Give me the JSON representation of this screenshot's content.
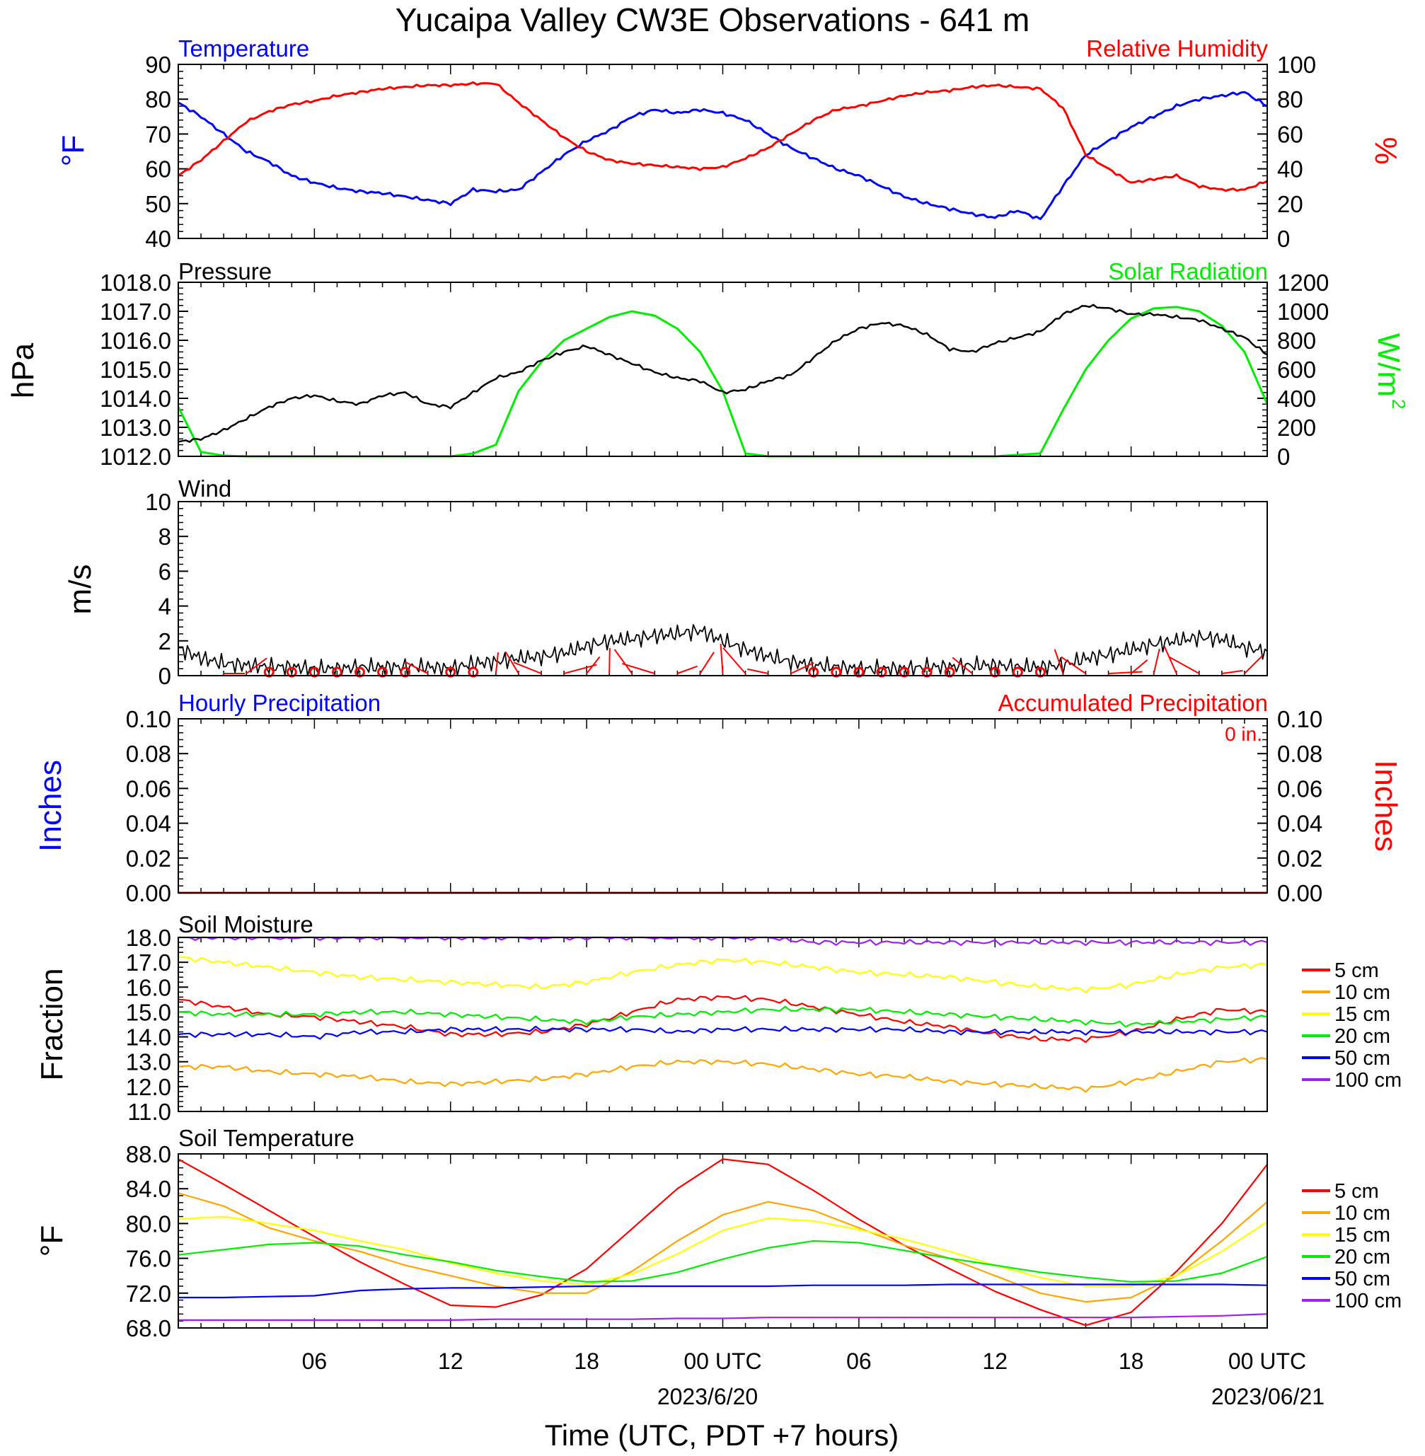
{
  "title": "Yucaipa Valley CW3E Observations - 641 m",
  "xlabel": "Time (UTC, PDT +7 hours)",
  "x_ticks": [
    "06",
    "12",
    "18",
    "00 UTC",
    "06",
    "12",
    "18",
    "00 UTC"
  ],
  "x_dates": [
    "2023/6/20",
    "2023/06/21"
  ],
  "colors": {
    "blue": "#0000ff",
    "red": "#ff0000",
    "green": "#00ee00",
    "black": "#000000",
    "orange": "#ffa500",
    "yellow": "#ffff00",
    "purple": "#a020f0"
  },
  "chart_data": [
    {
      "type": "line",
      "title": "Temperature",
      "title_right": "Relative Humidity",
      "ylabel": "°F",
      "ylabel_right": "%",
      "ylim": [
        40,
        90
      ],
      "ylim_right": [
        0,
        100
      ],
      "yticks": [
        "40",
        "50",
        "60",
        "70",
        "80",
        "90"
      ],
      "yticks_right": [
        "0",
        "20",
        "40",
        "60",
        "80",
        "100"
      ],
      "x_hours": [
        0,
        1,
        2,
        3,
        4,
        5,
        6,
        7,
        8,
        9,
        10,
        11,
        12,
        13,
        14,
        15,
        16,
        17,
        18,
        19,
        20,
        21,
        22,
        23,
        24,
        25,
        26,
        27,
        28,
        29,
        30,
        31,
        32,
        33,
        34,
        35,
        36,
        37,
        38,
        39,
        40,
        41,
        42,
        43,
        44,
        45,
        46,
        47,
        48
      ],
      "series": [
        {
          "name": "Temperature",
          "axis": "left",
          "color": "#0000ff",
          "values": [
            79,
            75,
            70,
            65,
            62,
            58,
            56,
            54.5,
            53.5,
            53,
            52,
            51,
            50,
            54,
            53.5,
            54,
            59,
            64,
            68,
            71,
            75,
            77,
            76,
            77,
            76,
            74,
            70,
            66,
            63,
            60,
            58,
            55,
            52,
            50,
            48.5,
            47,
            46,
            48,
            45.5,
            55,
            64,
            68,
            72,
            75,
            78,
            80,
            81,
            82,
            78
          ]
        },
        {
          "name": "Relative Humidity",
          "axis": "right",
          "color": "#ff0000",
          "values": [
            36,
            45,
            56,
            67,
            73,
            77,
            79,
            82,
            84,
            86,
            87,
            88,
            88,
            89,
            89,
            78,
            68,
            58,
            50,
            45,
            43,
            42,
            41,
            40,
            41,
            46,
            52,
            60,
            68,
            74,
            76,
            79,
            82,
            84,
            85,
            87,
            88,
            87,
            86,
            75,
            48,
            40,
            32,
            34,
            36,
            30,
            28,
            28,
            33
          ]
        }
      ]
    },
    {
      "type": "line",
      "title": "Pressure",
      "title_right": "Solar Radiation",
      "ylabel": "hPa",
      "ylabel_right": "W/m",
      "ylabel_right_sup": "2",
      "ylim": [
        1012,
        1018
      ],
      "ylim_right": [
        0,
        1200
      ],
      "yticks": [
        "1012.0",
        "1013.0",
        "1014.0",
        "1015.0",
        "1016.0",
        "1017.0",
        "1018.0"
      ],
      "yticks_right": [
        "0",
        "200",
        "400",
        "600",
        "800",
        "1000",
        "1200"
      ],
      "x_hours": [
        0,
        1,
        2,
        3,
        4,
        5,
        6,
        7,
        8,
        9,
        10,
        11,
        12,
        13,
        14,
        15,
        16,
        17,
        18,
        19,
        20,
        21,
        22,
        23,
        24,
        25,
        26,
        27,
        28,
        29,
        30,
        31,
        32,
        33,
        34,
        35,
        36,
        37,
        38,
        39,
        40,
        41,
        42,
        43,
        44,
        45,
        46,
        47,
        48
      ],
      "series": [
        {
          "name": "Pressure",
          "axis": "left",
          "color": "#000000",
          "values": [
            1012.5,
            1012.6,
            1012.9,
            1013.3,
            1013.7,
            1014.0,
            1014.1,
            1013.9,
            1013.8,
            1014.1,
            1014.2,
            1013.8,
            1013.7,
            1014.2,
            1014.7,
            1014.9,
            1015.3,
            1015.6,
            1015.8,
            1015.5,
            1015.2,
            1014.9,
            1014.7,
            1014.6,
            1014.2,
            1014.3,
            1014.6,
            1014.8,
            1015.4,
            1016.0,
            1016.4,
            1016.6,
            1016.5,
            1016.2,
            1015.7,
            1015.6,
            1015.9,
            1016.1,
            1016.3,
            1016.9,
            1017.2,
            1017.1,
            1016.9,
            1016.9,
            1016.8,
            1016.7,
            1016.4,
            1016.1,
            1015.5
          ]
        },
        {
          "name": "Solar Radiation",
          "axis": "right",
          "color": "#00ee00",
          "values": [
            340,
            30,
            5,
            0,
            0,
            0,
            0,
            0,
            0,
            0,
            0,
            0,
            0,
            20,
            80,
            450,
            650,
            800,
            880,
            960,
            1000,
            970,
            880,
            720,
            450,
            20,
            0,
            0,
            0,
            0,
            0,
            0,
            0,
            0,
            0,
            0,
            0,
            10,
            20,
            320,
            600,
            800,
            950,
            1020,
            1030,
            1000,
            900,
            720,
            360
          ]
        }
      ]
    },
    {
      "type": "line",
      "title": "Wind",
      "ylabel": "m/s",
      "ylim": [
        0,
        10
      ],
      "yticks": [
        "0",
        "2",
        "4",
        "6",
        "8",
        "10"
      ],
      "x_hours": [
        0,
        1,
        2,
        3,
        4,
        5,
        6,
        7,
        8,
        9,
        10,
        11,
        12,
        13,
        14,
        15,
        16,
        17,
        18,
        19,
        20,
        21,
        22,
        23,
        24,
        25,
        26,
        27,
        28,
        29,
        30,
        31,
        32,
        33,
        34,
        35,
        36,
        37,
        38,
        39,
        40,
        41,
        42,
        43,
        44,
        45,
        46,
        47,
        48
      ],
      "series": [
        {
          "name": "Wind speed",
          "color": "#000000",
          "values": [
            1.6,
            1.0,
            0.7,
            0.6,
            0.5,
            0.5,
            0.4,
            0.4,
            0.5,
            0.5,
            0.5,
            0.5,
            0.4,
            0.7,
            0.8,
            1.0,
            1.1,
            1.3,
            1.7,
            2.0,
            2.1,
            2.3,
            2.4,
            2.6,
            2.0,
            1.5,
            1.1,
            0.8,
            0.6,
            0.5,
            0.4,
            0.4,
            0.4,
            0.5,
            0.5,
            0.6,
            0.6,
            0.5,
            0.5,
            0.6,
            1.0,
            1.2,
            1.5,
            1.8,
            2.0,
            2.2,
            2.1,
            1.6,
            1.4
          ]
        }
      ],
      "barb_hours": [
        2,
        3,
        4,
        5,
        6,
        7,
        8,
        9,
        10,
        11,
        12,
        13,
        14,
        15,
        16,
        17,
        18,
        19,
        20,
        21,
        22,
        23,
        24,
        25,
        26,
        27,
        28,
        29,
        30,
        31,
        32,
        33,
        34,
        35,
        36,
        37,
        38,
        39,
        40,
        41,
        42,
        43,
        44,
        45,
        46,
        47
      ],
      "calm_hours": [
        4,
        5,
        6,
        7,
        8,
        9,
        10,
        12,
        13,
        28,
        29,
        30,
        31,
        32,
        33,
        34,
        36,
        37,
        38
      ]
    },
    {
      "type": "line",
      "title": "Hourly Precipitation",
      "title_right": "Accumulated Precipitation",
      "annotation": "0 in.",
      "ylabel": "Inches",
      "ylabel_right": "Inches",
      "ylim": [
        0,
        0.1
      ],
      "ylim_right": [
        0,
        0.1
      ],
      "yticks": [
        "0.00",
        "0.02",
        "0.04",
        "0.06",
        "0.08",
        "0.10"
      ],
      "yticks_right": [
        "0.00",
        "0.02",
        "0.04",
        "0.06",
        "0.08",
        "0.10"
      ],
      "x_hours": [
        0,
        48
      ],
      "series": [
        {
          "name": "Hourly Precipitation",
          "axis": "left",
          "color": "#0000ff",
          "values": [
            0,
            0
          ]
        },
        {
          "name": "Accumulated Precipitation",
          "axis": "right",
          "color": "#ff0000",
          "values": [
            0,
            0
          ]
        }
      ]
    },
    {
      "type": "line",
      "title": "Soil Moisture",
      "ylabel": "Fraction",
      "ylim": [
        11,
        18
      ],
      "yticks": [
        "11.0",
        "12.0",
        "13.0",
        "14.0",
        "15.0",
        "16.0",
        "17.0",
        "18.0"
      ],
      "legend": [
        "5 cm",
        "10 cm",
        "15 cm",
        "20 cm",
        "50 cm",
        "100 cm"
      ],
      "x_hours": [
        0,
        2,
        4,
        6,
        8,
        10,
        12,
        14,
        16,
        18,
        20,
        22,
        24,
        26,
        28,
        30,
        32,
        34,
        36,
        38,
        40,
        42,
        44,
        46,
        48
      ],
      "series": [
        {
          "name": "5 cm",
          "color": "#ff0000",
          "values": [
            15.5,
            15.2,
            14.9,
            14.8,
            14.6,
            14.4,
            14.1,
            14.1,
            14.2,
            14.5,
            15.0,
            15.5,
            15.6,
            15.5,
            15.2,
            14.9,
            14.6,
            14.4,
            14.1,
            13.9,
            13.9,
            14.2,
            14.7,
            15.1,
            15.0
          ]
        },
        {
          "name": "10 cm",
          "color": "#ffa500",
          "values": [
            12.8,
            12.8,
            12.6,
            12.5,
            12.4,
            12.2,
            12.1,
            12.2,
            12.3,
            12.5,
            12.8,
            13.0,
            13.0,
            12.9,
            12.7,
            12.5,
            12.4,
            12.2,
            12.1,
            12.0,
            11.9,
            12.2,
            12.6,
            13.0,
            13.1
          ]
        },
        {
          "name": "15 cm",
          "color": "#ffff00",
          "values": [
            17.2,
            17.0,
            16.8,
            16.6,
            16.4,
            16.3,
            16.2,
            16.1,
            16.0,
            16.2,
            16.6,
            16.9,
            17.1,
            17.0,
            16.8,
            16.6,
            16.5,
            16.4,
            16.2,
            16.0,
            15.9,
            16.1,
            16.5,
            16.8,
            16.9
          ]
        },
        {
          "name": "20 cm",
          "color": "#00ee00",
          "values": [
            15.0,
            14.9,
            14.9,
            14.9,
            15.0,
            15.0,
            14.9,
            14.8,
            14.7,
            14.6,
            14.8,
            14.9,
            15.0,
            15.1,
            15.1,
            15.1,
            15.0,
            14.9,
            14.8,
            14.7,
            14.6,
            14.5,
            14.6,
            14.7,
            14.8
          ]
        },
        {
          "name": "50 cm",
          "color": "#0000ff",
          "values": [
            14.1,
            14.1,
            14.1,
            14.0,
            14.2,
            14.2,
            14.3,
            14.3,
            14.3,
            14.3,
            14.3,
            14.2,
            14.3,
            14.3,
            14.3,
            14.3,
            14.3,
            14.2,
            14.2,
            14.2,
            14.2,
            14.2,
            14.2,
            14.2,
            14.2
          ]
        },
        {
          "name": "100 cm",
          "color": "#a020f0",
          "values": [
            18.0,
            18.0,
            18.0,
            18.0,
            18.0,
            18.0,
            18.0,
            18.0,
            18.0,
            18.0,
            18.0,
            18.0,
            18.0,
            18.0,
            17.8,
            17.8,
            17.8,
            17.8,
            17.8,
            17.8,
            17.8,
            17.8,
            17.8,
            17.8,
            17.8
          ]
        }
      ]
    },
    {
      "type": "line",
      "title": "Soil Temperature",
      "ylabel": "°F",
      "ylim": [
        68,
        88
      ],
      "yticks": [
        "68.0",
        "72.0",
        "76.0",
        "80.0",
        "84.0",
        "88.0"
      ],
      "legend": [
        "5 cm",
        "10 cm",
        "15 cm",
        "20 cm",
        "50 cm",
        "100 cm"
      ],
      "x_hours": [
        0,
        2,
        4,
        6,
        8,
        10,
        12,
        14,
        16,
        18,
        20,
        22,
        24,
        26,
        28,
        30,
        32,
        34,
        36,
        38,
        40,
        42,
        44,
        46,
        48
      ],
      "series": [
        {
          "name": "5 cm",
          "color": "#ff0000",
          "values": [
            87.4,
            84.5,
            81.5,
            78.5,
            75.6,
            73.0,
            70.6,
            70.4,
            71.8,
            74.8,
            79.4,
            84.0,
            87.4,
            86.8,
            83.8,
            80.5,
            77.5,
            74.8,
            72.2,
            70.1,
            68.3,
            69.8,
            74.5,
            80.0,
            86.8
          ]
        },
        {
          "name": "10 cm",
          "color": "#ffa500",
          "values": [
            83.5,
            82.0,
            79.5,
            78.0,
            76.8,
            75.2,
            74.0,
            72.8,
            72.0,
            72.0,
            74.5,
            78.0,
            81.0,
            82.5,
            81.5,
            79.5,
            77.5,
            76.0,
            74.0,
            72.0,
            71.0,
            71.5,
            74.0,
            78.0,
            82.5
          ]
        },
        {
          "name": "15 cm",
          "color": "#ffff00",
          "values": [
            80.5,
            80.8,
            80.0,
            79.2,
            78.0,
            77.0,
            75.5,
            74.3,
            73.4,
            73.0,
            74.2,
            76.5,
            79.2,
            80.6,
            80.3,
            79.3,
            78.2,
            76.8,
            75.2,
            73.8,
            72.8,
            72.8,
            74.0,
            76.8,
            80.2
          ]
        },
        {
          "name": "20 cm",
          "color": "#00ee00",
          "values": [
            76.4,
            77.0,
            77.6,
            77.8,
            77.4,
            76.4,
            75.6,
            74.6,
            73.9,
            73.3,
            73.4,
            74.4,
            75.9,
            77.2,
            78.0,
            77.8,
            76.9,
            76.0,
            75.2,
            74.4,
            73.8,
            73.3,
            73.4,
            74.3,
            76.2
          ]
        },
        {
          "name": "50 cm",
          "color": "#0000ff",
          "values": [
            71.5,
            71.5,
            71.6,
            71.7,
            72.3,
            72.5,
            72.6,
            72.6,
            72.7,
            72.8,
            72.8,
            72.8,
            72.8,
            72.8,
            72.9,
            72.9,
            72.9,
            73.0,
            73.0,
            73.0,
            73.0,
            73.0,
            73.0,
            73.0,
            72.9
          ]
        },
        {
          "name": "100 cm",
          "color": "#a020f0",
          "values": [
            68.9,
            68.9,
            68.9,
            68.9,
            68.9,
            68.9,
            68.9,
            69.0,
            69.0,
            69.0,
            69.0,
            69.1,
            69.1,
            69.2,
            69.2,
            69.2,
            69.2,
            69.2,
            69.2,
            69.2,
            69.2,
            69.2,
            69.3,
            69.4,
            69.6
          ]
        }
      ]
    }
  ]
}
